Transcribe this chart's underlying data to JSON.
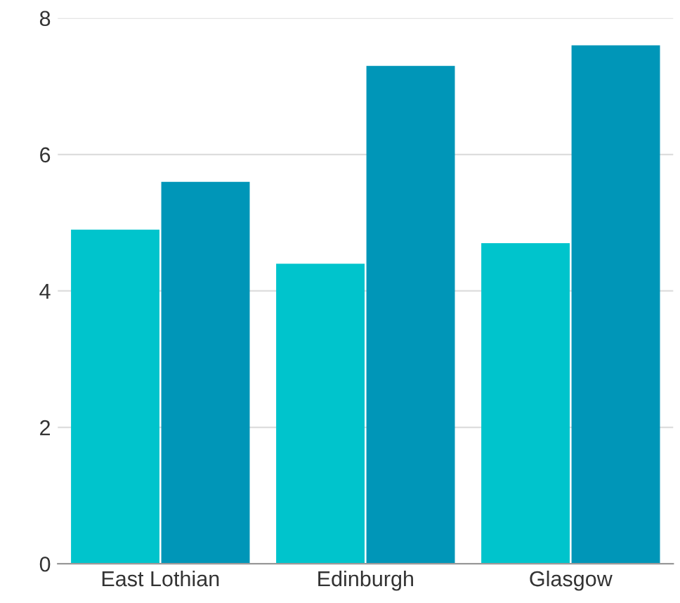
{
  "chart_data": {
    "type": "bar",
    "categories": [
      "East Lothian",
      "Edinburgh",
      "Glasgow"
    ],
    "series": [
      {
        "color": "#00c4cc",
        "values": [
          4.9,
          4.4,
          4.7
        ]
      },
      {
        "color": "#0096b8",
        "values": [
          5.6,
          7.3,
          7.6
        ]
      }
    ],
    "ylim": [
      0,
      8
    ],
    "yticks": [
      0,
      2,
      4,
      6,
      8
    ],
    "grid": "y",
    "legend": false
  }
}
